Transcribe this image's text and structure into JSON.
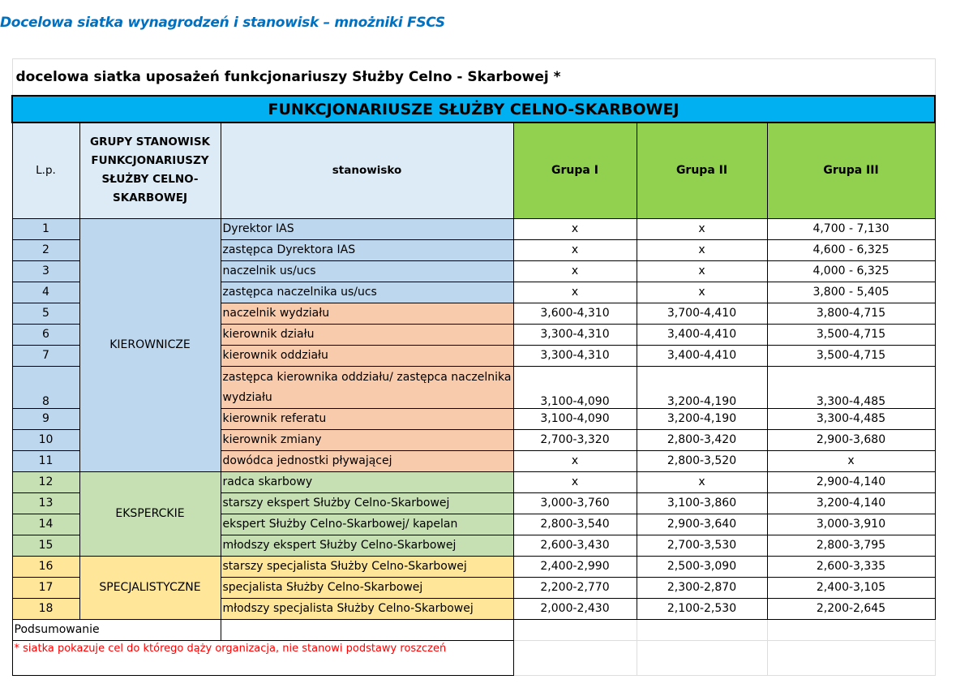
{
  "doc_title": "Docelowa siatka wynagrodzeń i stanowisk – mnożniki FSCS",
  "subtitle": "docelowa siatka uposażeń funkcjonariuszy Służby Celno - Skarbowej *",
  "banner": "FUNKCJONARIUSZE SŁUŻBY CELNO-SKARBOWEJ",
  "headers": {
    "lp": "L.p.",
    "group": "GRUPY STANOWISK FUNKCJONARIUSZY SŁUŻBY CELNO-SKARBOWEJ",
    "position": "stanowisko",
    "g1": "Grupa I",
    "g2": "Grupa II",
    "g3": "Grupa III"
  },
  "groups": [
    {
      "label": "KIEROWNICZE",
      "color": "#bdd7ee",
      "rows": 11
    },
    {
      "label": "EKSPERCKIE",
      "color": "#c6e0b4",
      "rows": 4
    },
    {
      "label": "SPECJALISTYCZNE",
      "color": "#ffe699",
      "rows": 3
    }
  ],
  "rows": [
    {
      "lp": "1",
      "pos": "Dyrektor IAS",
      "tone": "blue",
      "g1": "x",
      "g2": "x",
      "g3": "4,700 - 7,130"
    },
    {
      "lp": "2",
      "pos": "zastępca Dyrektora IAS",
      "tone": "blue",
      "g1": "x",
      "g2": "x",
      "g3": "4,600 - 6,325"
    },
    {
      "lp": "3",
      "pos": "naczelnik us/ucs",
      "tone": "blue",
      "g1": "x",
      "g2": "x",
      "g3": "4,000 - 6,325"
    },
    {
      "lp": "4",
      "pos": "zastępca naczelnika us/ucs",
      "tone": "blue",
      "g1": "x",
      "g2": "x",
      "g3": "3,800 - 5,405"
    },
    {
      "lp": "5",
      "pos": "naczelnik wydziału",
      "tone": "orange",
      "g1": "3,600-4,310",
      "g2": "3,700-4,410",
      "g3": "3,800-4,715"
    },
    {
      "lp": "6",
      "pos": "kierownik działu",
      "tone": "orange",
      "g1": "3,300-4,310",
      "g2": "3,400-4,410",
      "g3": "3,500-4,715"
    },
    {
      "lp": "7",
      "pos": "kierownik oddziału",
      "tone": "orange",
      "g1": "3,300-4,310",
      "g2": "3,400-4,410",
      "g3": "3,500-4,715"
    },
    {
      "lp": "8",
      "pos": "zastępca kierownika oddziału/ zastępca naczelnika wydziału",
      "tone": "orange",
      "g1": "3,100-4,090",
      "g2": "3,200-4,190",
      "g3": "3,300-4,485"
    },
    {
      "lp": "9",
      "pos": "kierownik referatu",
      "tone": "orange",
      "g1": "3,100-4,090",
      "g2": "3,200-4,190",
      "g3": "3,300-4,485"
    },
    {
      "lp": "10",
      "pos": "kierownik zmiany",
      "tone": "orange",
      "g1": "2,700-3,320",
      "g2": "2,800-3,420",
      "g3": "2,900-3,680"
    },
    {
      "lp": "11",
      "pos": "dowódca jednostki pływającej",
      "tone": "orange",
      "g1": "x",
      "g2": "2,800-3,520",
      "g3": "x"
    },
    {
      "lp": "12",
      "pos": "radca skarbowy",
      "tone": "green",
      "g1": "x",
      "g2": "x",
      "g3": "2,900-4,140"
    },
    {
      "lp": "13",
      "pos": "starszy ekspert Służby Celno-Skarbowej",
      "tone": "green",
      "g1": "3,000-3,760",
      "g2": "3,100-3,860",
      "g3": "3,200-4,140"
    },
    {
      "lp": "14",
      "pos": "ekspert Służby Celno-Skarbowej/ kapelan",
      "tone": "green",
      "g1": "2,800-3,540",
      "g2": "2,900-3,640",
      "g3": "3,000-3,910"
    },
    {
      "lp": "15",
      "pos": "młodszy ekspert Służby Celno-Skarbowej",
      "tone": "green",
      "g1": "2,600-3,430",
      "g2": "2,700-3,530",
      "g3": "2,800-3,795"
    },
    {
      "lp": "16",
      "pos": "starszy specjalista Służby Celno-Skarbowej",
      "tone": "yellow",
      "g1": "2,400-2,990",
      "g2": "2,500-3,090",
      "g3": "2,600-3,335"
    },
    {
      "lp": "17",
      "pos": "specjalista Służby Celno-Skarbowej",
      "tone": "yellow",
      "g1": "2,200-2,770",
      "g2": "2,300-2,870",
      "g3": "2,400-3,105"
    },
    {
      "lp": "18",
      "pos": "młodszy specjalista Służby Celno-Skarbowej",
      "tone": "yellow",
      "g1": "2,000-2,430",
      "g2": "2,100-2,530",
      "g3": "2,200-2,645"
    }
  ],
  "summary_label": "Podsumowanie",
  "footnote": "* siatka pokazuje cel do którego dąży organizacja, nie stanowi podstawy roszczeń"
}
